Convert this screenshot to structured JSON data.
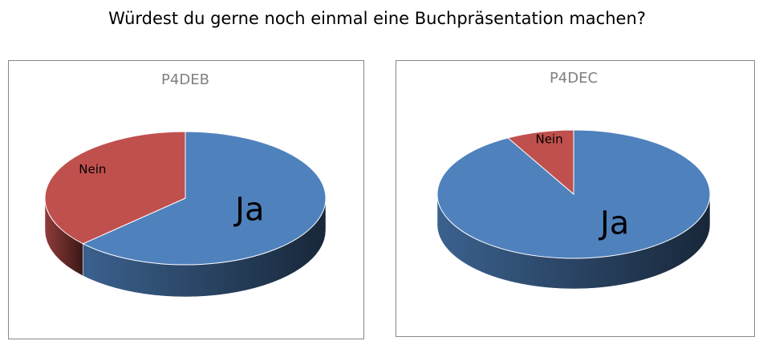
{
  "title": "Würdest du gerne noch einmal eine Buchpräsentation machen?",
  "chart_data": [
    {
      "type": "pie3d",
      "title": "P4DEB",
      "categories": [
        "Ja",
        "Nein"
      ],
      "values": [
        63,
        37
      ],
      "colors": [
        "#4f81bd",
        "#c0504d"
      ]
    },
    {
      "type": "pie3d",
      "title": "P4DEC",
      "categories": [
        "Ja",
        "Nein"
      ],
      "values": [
        92,
        8
      ],
      "colors": [
        "#4f81bd",
        "#c0504d"
      ]
    }
  ]
}
